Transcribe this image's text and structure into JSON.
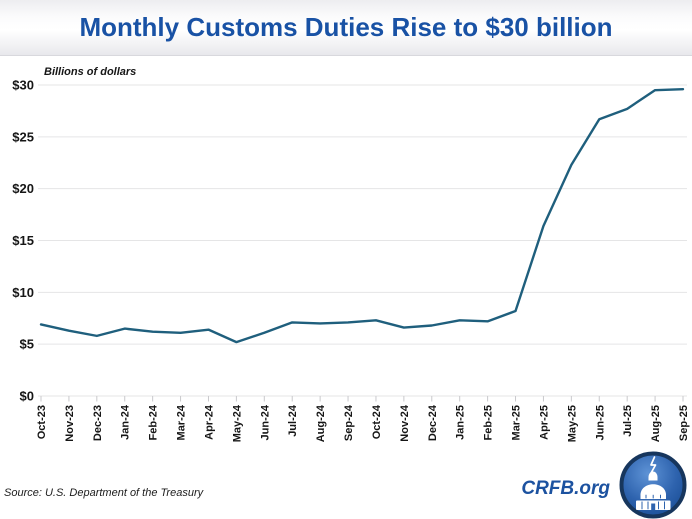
{
  "header": {
    "title": "Monthly Customs Duties Rise to $30 billion"
  },
  "chart_data": {
    "type": "line",
    "title": "Monthly Customs Duties Rise to $30 billion",
    "ylabel": "Billions of dollars",
    "xlabel": "",
    "categories": [
      "Oct-23",
      "Nov-23",
      "Dec-23",
      "Jan-24",
      "Feb-24",
      "Mar-24",
      "Apr-24",
      "May-24",
      "Jun-24",
      "Jul-24",
      "Aug-24",
      "Sep-24",
      "Oct-24",
      "Nov-24",
      "Dec-24",
      "Jan-25",
      "Feb-25",
      "Mar-25",
      "Apr-25",
      "May-25",
      "Jun-25",
      "Jul-25",
      "Aug-25",
      "Sep-25"
    ],
    "series": [
      {
        "name": "Monthly customs duties",
        "values": [
          6.9,
          6.3,
          5.8,
          6.5,
          6.2,
          6.1,
          6.4,
          5.2,
          6.1,
          7.1,
          7.0,
          7.1,
          7.3,
          6.6,
          6.8,
          7.3,
          7.2,
          8.2,
          16.4,
          22.3,
          26.7,
          27.7,
          29.5,
          29.6
        ]
      }
    ],
    "ylim": [
      0,
      30
    ],
    "ytick_step": 5,
    "ytick_prefix": "$",
    "ytick_labels": [
      "$0",
      "$5",
      "$10",
      "$15",
      "$20",
      "$25",
      "$30"
    ],
    "grid": "horizontal",
    "legend": "none",
    "line_color": "#1F5F7D",
    "gridline_color": "#E5E5E6"
  },
  "footer": {
    "source": "Source: U.S. Department of the Treasury",
    "brand": "CRFB.org"
  },
  "icons": {
    "logo": "crfb-capitol-dome-logo"
  },
  "colors": {
    "title_blue": "#1952A5",
    "brand_blue": "#1C52A0",
    "line_teal": "#1F5F7D",
    "logo_navy": "#17365D"
  }
}
